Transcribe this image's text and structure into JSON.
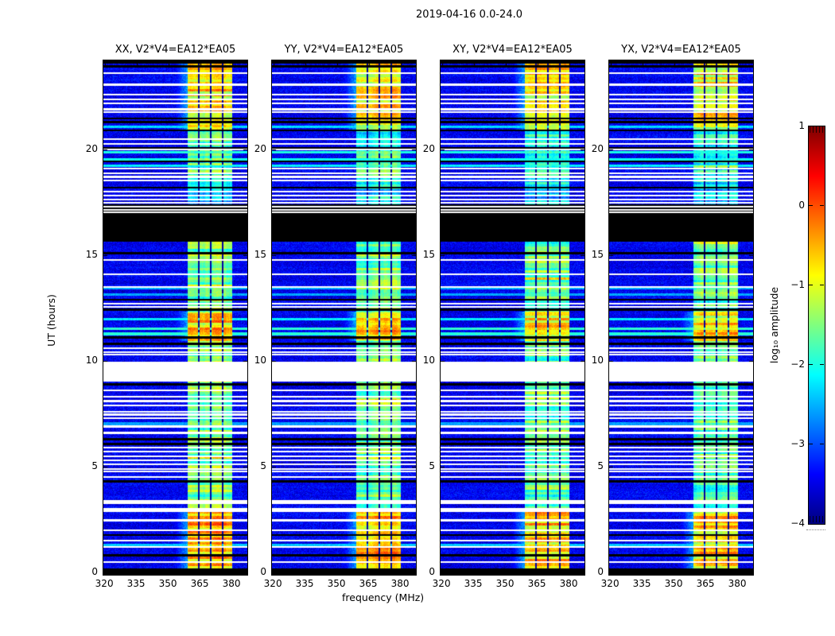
{
  "title": "2019-04-16 0.0-24.0",
  "colors": {
    "background": "#ffffff",
    "axis": "#000000",
    "flag_white": "#ffffff",
    "flag_black": "#000000"
  },
  "chart_data": {
    "type": "heatmap",
    "title": "2019-04-16 0.0-24.0",
    "description": "Four dynamic-spectrum (time vs frequency) panels of visibility amplitude for baseline V2*V4=EA12*EA05, one per polarization product, sharing axes and a jet colorbar.",
    "panels": [
      {
        "label": "XX, V2*V4=EA12*EA05",
        "seed": 101,
        "level_offset": 0.0
      },
      {
        "label": "YY, V2*V4=EA12*EA05",
        "seed": 202,
        "level_offset": -0.05
      },
      {
        "label": "XY, V2*V4=EA12*EA05",
        "seed": 303,
        "level_offset": -0.1
      },
      {
        "label": "YX, V2*V4=EA12*EA05",
        "seed": 404,
        "level_offset": -0.2
      }
    ],
    "x": {
      "label": "frequency (MHz)",
      "range": [
        319.2,
        387.1
      ],
      "ticks": [
        320,
        335,
        350,
        365,
        380
      ]
    },
    "y": {
      "label": "UT (hours)",
      "range": [
        0,
        24.2
      ],
      "ticks": [
        0,
        5,
        10,
        15,
        20
      ]
    },
    "colorbar": {
      "label": "log₁₀ amplitude",
      "range": [
        -4,
        1
      ],
      "ticks": [
        1,
        0,
        -1,
        -2,
        -3,
        -4
      ],
      "colormap": "jet"
    },
    "colormap_anchors": [
      [
        0.0,
        0,
        0,
        127
      ],
      [
        0.125,
        0,
        0,
        255
      ],
      [
        0.375,
        0,
        255,
        255
      ],
      [
        0.625,
        255,
        255,
        0
      ],
      [
        0.875,
        255,
        0,
        0
      ],
      [
        1.0,
        127,
        0,
        0
      ]
    ],
    "noise_floor_log10": -3.45,
    "rfi": {
      "band_mhz": [
        358.6,
        379.6
      ],
      "subbands_mhz": [
        [
          358.6,
          363.55
        ],
        [
          364.25,
          369.35
        ],
        [
          370.05,
          374.95
        ],
        [
          375.65,
          379.6
        ]
      ],
      "sections_ut_level": [
        [
          0.0,
          2.86,
          -0.55
        ],
        [
          3.06,
          5.6,
          -1.55
        ],
        [
          5.6,
          9.04,
          -1.5
        ],
        [
          10.0,
          10.94,
          -1.6
        ],
        [
          10.94,
          12.36,
          -0.7
        ],
        [
          12.36,
          15.66,
          -1.5
        ],
        [
          17.42,
          18.35,
          -2.3
        ],
        [
          18.35,
          20.9,
          -1.85
        ],
        [
          20.9,
          24.2,
          -0.8
        ]
      ]
    },
    "data_gaps_ut": [
      [
        9.04,
        10.0
      ],
      [
        2.86,
        3.06
      ]
    ],
    "black_flag_band_ut": [
      15.66,
      17.42
    ],
    "white_flag_rows_ut": [
      23.62,
      23.08,
      22.62,
      22.38,
      22.2,
      21.92,
      21.78,
      20.52,
      20.28,
      20.02,
      19.12,
      18.9,
      18.72,
      18.55,
      14.78,
      14.12,
      13.52,
      12.72,
      12.58,
      10.62,
      10.42,
      10.32,
      8.62,
      8.32,
      8.12,
      7.92,
      7.62,
      7.48,
      7.32,
      6.92,
      6.62,
      5.92,
      5.72,
      5.52,
      5.32,
      5.12,
      4.92,
      4.78,
      4.52,
      3.38,
      3.28,
      2.48,
      2.02,
      1.52,
      1.22,
      0.52
    ],
    "black_flag_rows_ut": [
      24.12,
      23.95,
      21.48,
      21.32,
      20.92,
      20.08,
      19.45,
      18.22,
      15.12,
      12.92,
      12.44,
      11.12,
      10.82,
      8.92,
      6.32,
      6.08,
      4.32,
      1.78,
      0.82,
      0.15,
      0.05
    ],
    "bright_streak_rows_ut": [
      [
        21.1,
        -2.3
      ],
      [
        19.9,
        -2.0
      ],
      [
        19.55,
        -2.1
      ],
      [
        19.25,
        -2.15
      ],
      [
        13.45,
        -2.5
      ],
      [
        13.15,
        -2.55
      ],
      [
        12.0,
        -2.2
      ],
      [
        11.55,
        -1.9
      ],
      [
        11.3,
        -1.95
      ],
      [
        7.05,
        -2.6
      ],
      [
        1.32,
        -2.4
      ]
    ],
    "striped_flag_region_ut": [
      17.45,
      18.35
    ]
  }
}
